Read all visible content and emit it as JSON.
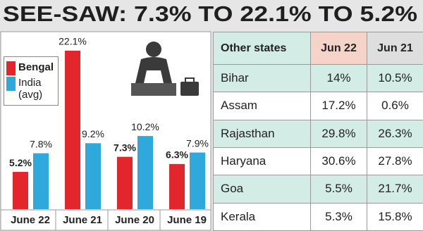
{
  "title": "SEE-SAW: 7.3% TO 22.1% TO 5.2%",
  "chart_data": {
    "type": "bar",
    "categories": [
      "June 22",
      "June 21",
      "June 20",
      "June 19"
    ],
    "series": [
      {
        "name": "Bengal",
        "color": "#e3262b",
        "values": [
          5.2,
          22.1,
          7.3,
          6.3
        ],
        "value_labels": [
          "5.2%",
          "22.1%",
          "7.3%",
          "6.3%"
        ]
      },
      {
        "name": "India (avg)",
        "color": "#2fa8dc",
        "values": [
          7.8,
          9.2,
          10.2,
          7.9
        ],
        "value_labels": [
          "7.8%",
          "9.2%",
          "10.2%",
          "7.9%"
        ]
      }
    ]
  },
  "table": {
    "header": [
      "Other states",
      "Jun 22",
      "Jun 21"
    ],
    "rows": [
      [
        "Bihar",
        "14%",
        "10.5%"
      ],
      [
        "Assam",
        "17.2%",
        "0.6%"
      ],
      [
        "Rajasthan",
        "29.8%",
        "26.3%"
      ],
      [
        "Haryana",
        "30.6%",
        "27.8%"
      ],
      [
        "Goa",
        "5.5%",
        "21.7%"
      ],
      [
        "Kerala",
        "5.3%",
        "15.8%"
      ]
    ]
  }
}
